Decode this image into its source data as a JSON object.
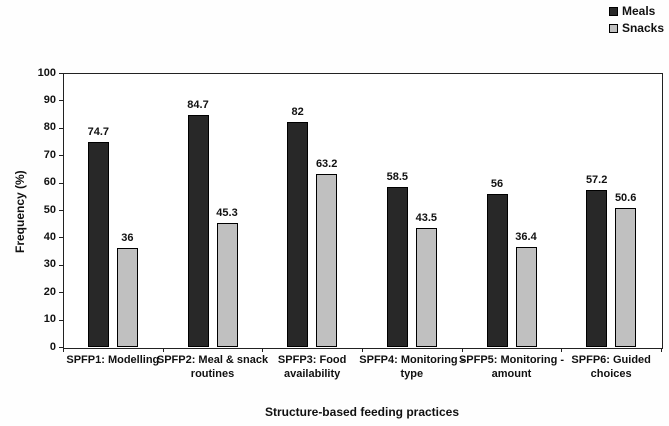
{
  "chart_data": {
    "type": "bar",
    "title": "",
    "categories": [
      "SPFP1: Modelling",
      "SPFP2: Meal & snack routines",
      "SPFP3: Food availability",
      "SPFP4: Monitoring - type",
      "SPFP5: Monitoring - amount",
      "SPFP6: Guided choices"
    ],
    "series": [
      {
        "name": "Meals",
        "color": "#282828",
        "values": [
          74.7,
          84.7,
          82,
          58.5,
          56,
          57.2
        ]
      },
      {
        "name": "Snacks",
        "color": "#c0c0c0",
        "values": [
          36,
          45.3,
          63.2,
          43.5,
          36.4,
          50.6
        ]
      }
    ],
    "xlabel": "Structure-based feeding practices",
    "ylabel": "Frequency (%)",
    "ylim": [
      0,
      100
    ],
    "ytick_step": 10,
    "grid": false,
    "legend_position": "top-right",
    "bar_border_color": "#000000"
  }
}
